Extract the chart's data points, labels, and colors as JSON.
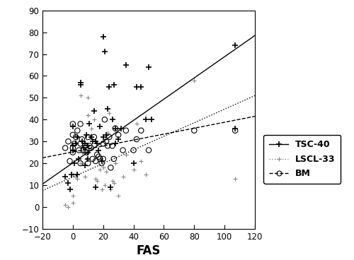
{
  "title": "",
  "xlabel": "FAS",
  "ylabel": "",
  "xlim": [
    -20,
    120
  ],
  "ylim": [
    -10,
    90
  ],
  "xticks": [
    -20,
    0,
    20,
    40,
    60,
    80,
    100,
    120
  ],
  "yticks": [
    -10,
    0,
    10,
    20,
    30,
    40,
    50,
    60,
    70,
    80,
    90
  ],
  "tsc40_x": [
    -5,
    -3,
    -2,
    -1,
    0,
    0,
    0,
    1,
    2,
    3,
    3,
    4,
    5,
    5,
    6,
    7,
    8,
    8,
    9,
    10,
    10,
    10,
    11,
    12,
    13,
    14,
    15,
    15,
    16,
    17,
    18,
    19,
    20,
    20,
    21,
    22,
    23,
    24,
    25,
    26,
    27,
    28,
    28,
    30,
    32,
    35,
    40,
    42,
    45,
    48,
    50,
    52,
    107,
    107
  ],
  "tsc40_y": [
    14,
    11,
    8,
    15,
    28,
    37,
    26,
    20,
    29,
    15,
    32,
    22,
    56,
    57,
    30,
    27,
    29,
    19,
    33,
    28,
    25,
    22,
    38,
    32,
    30,
    44,
    9,
    30,
    29,
    26,
    37,
    21,
    32,
    78,
    71,
    33,
    45,
    55,
    9,
    40,
    56,
    29,
    36,
    31,
    36,
    65,
    20,
    55,
    55,
    40,
    64,
    40,
    74,
    36
  ],
  "lscl33_x": [
    -5,
    -3,
    0,
    0,
    0,
    2,
    3,
    5,
    5,
    6,
    8,
    9,
    10,
    10,
    12,
    14,
    15,
    16,
    18,
    19,
    20,
    21,
    22,
    23,
    24,
    25,
    26,
    27,
    28,
    30,
    33,
    35,
    40,
    42,
    45,
    48,
    80,
    107
  ],
  "lscl33_y": [
    1,
    0,
    5,
    15,
    2,
    14,
    13,
    20,
    51,
    25,
    14,
    22,
    42,
    50,
    36,
    40,
    13,
    12,
    17,
    8,
    18,
    10,
    16,
    34,
    43,
    8,
    12,
    11,
    20,
    5,
    14,
    24,
    17,
    38,
    21,
    15,
    58,
    13
  ],
  "bm_x": [
    -5,
    -3,
    -2,
    0,
    0,
    0,
    0,
    1,
    2,
    3,
    4,
    5,
    5,
    5,
    6,
    7,
    8,
    9,
    10,
    10,
    11,
    12,
    13,
    14,
    15,
    16,
    17,
    18,
    19,
    20,
    20,
    21,
    22,
    23,
    24,
    25,
    26,
    27,
    28,
    30,
    33,
    35,
    40,
    42,
    45,
    50,
    80,
    107
  ],
  "bm_y": [
    27,
    30,
    21,
    27,
    33,
    38,
    25,
    29,
    32,
    35,
    26,
    38,
    20,
    29,
    31,
    26,
    28,
    25,
    20,
    32,
    28,
    27,
    22,
    32,
    21,
    24,
    23,
    22,
    20,
    29,
    22,
    40,
    30,
    28,
    32,
    18,
    28,
    22,
    36,
    33,
    26,
    35,
    26,
    31,
    35,
    26,
    35,
    35
  ],
  "tsc40_line_x": [
    -20,
    120
  ],
  "tsc40_line_y": [
    10.5,
    78.5
  ],
  "lscl33_line_x": [
    -20,
    120
  ],
  "lscl33_line_y": [
    7.5,
    51.0
  ],
  "bm_line_x": [
    -20,
    120
  ],
  "bm_line_y": [
    22.5,
    41.5
  ],
  "bg_color": "#ffffff",
  "line_color": "#000000",
  "tsc40_label": "TSC-40",
  "lscl33_label": "LSCL-33",
  "bm_label": "BM"
}
